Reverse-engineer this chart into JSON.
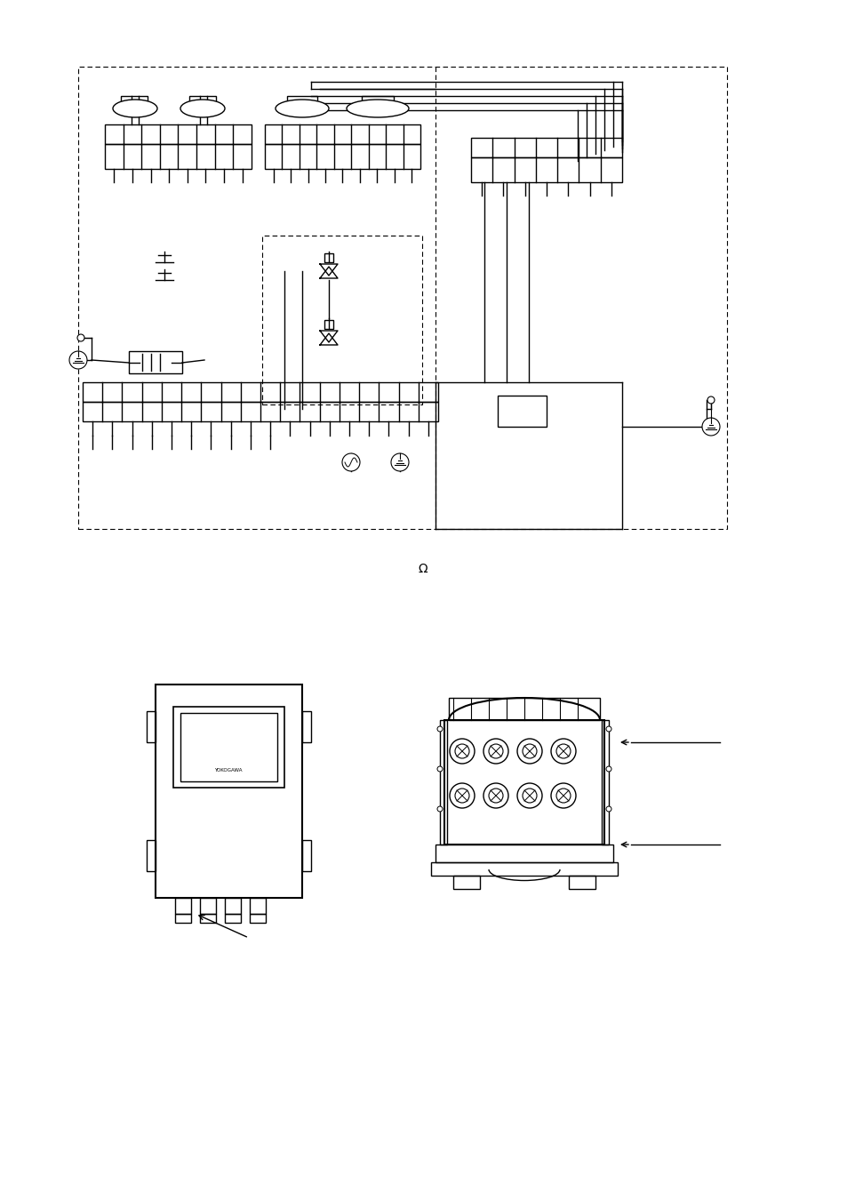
{
  "bg_color": "#ffffff",
  "line_color": "#000000",
  "dashed_color": "#555555",
  "fig_width": 9.54,
  "fig_height": 13.51,
  "dpi": 100
}
